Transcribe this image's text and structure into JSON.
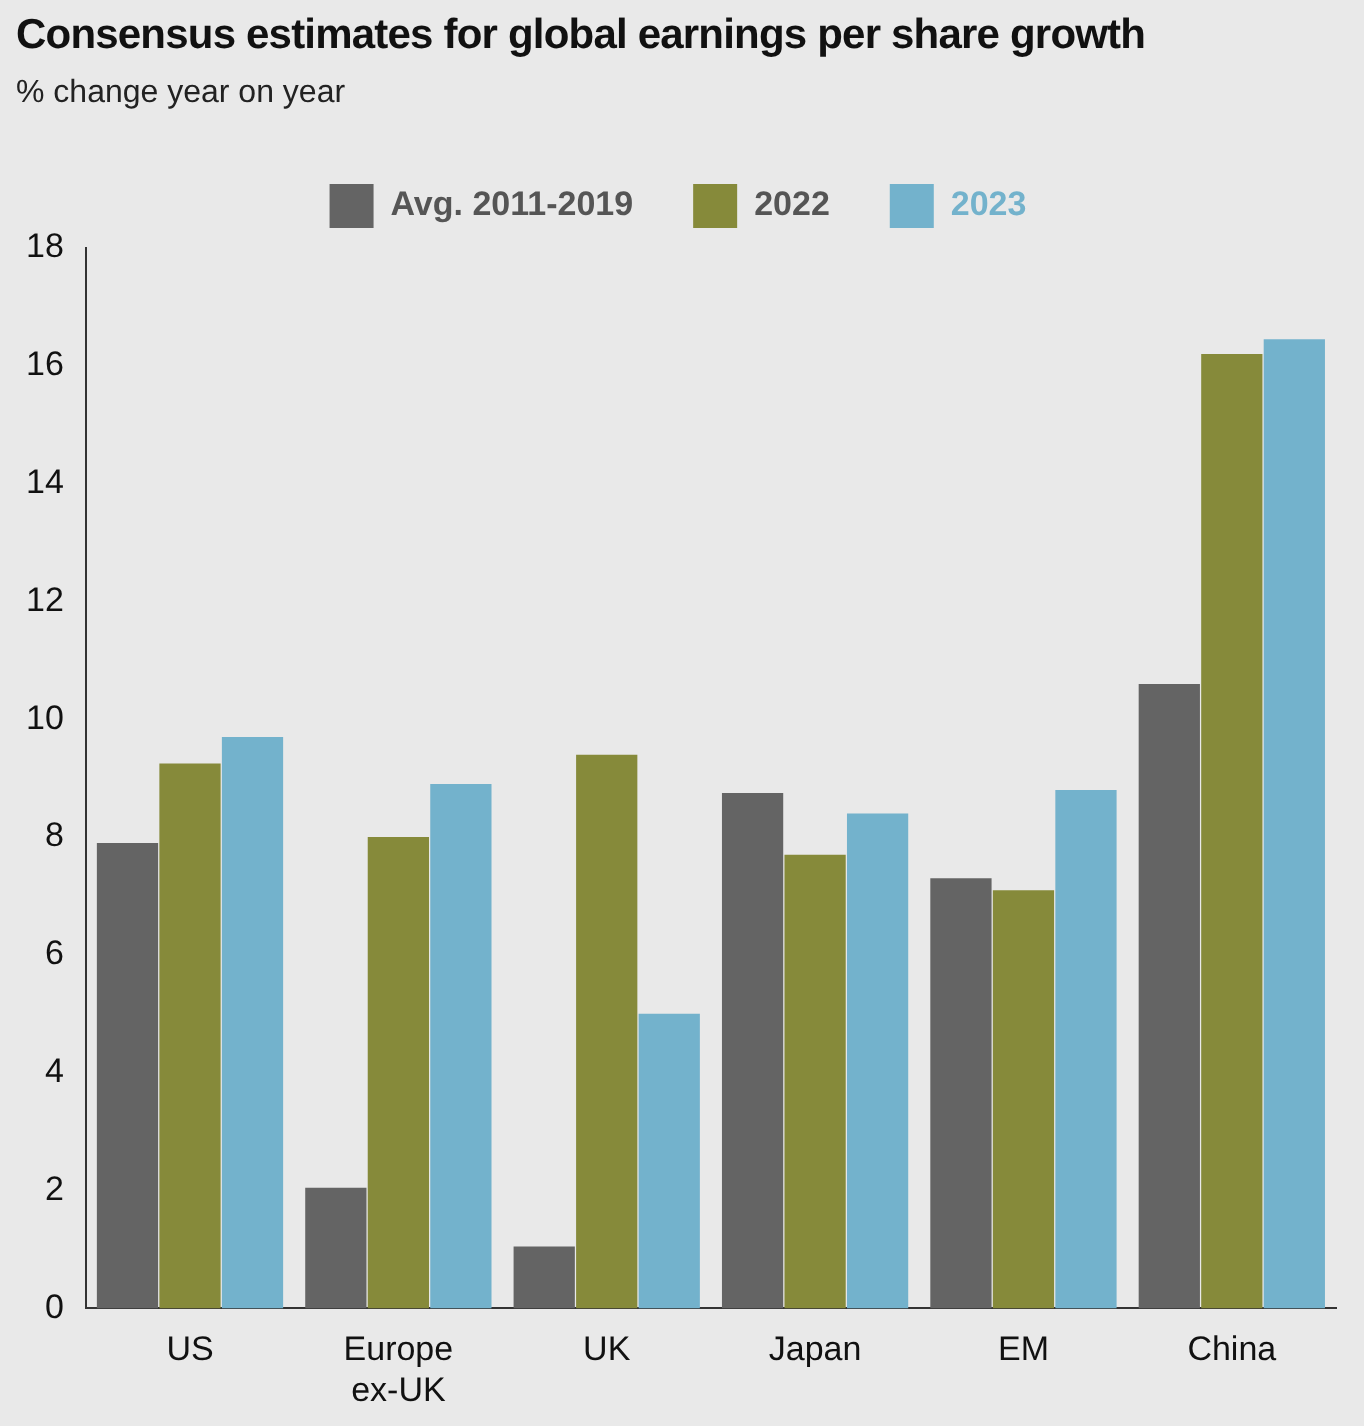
{
  "chart_data": {
    "type": "bar",
    "title": "Consensus estimates for global earnings per share growth",
    "subtitle": "% change year on year",
    "categories": [
      "US",
      "Europe ex-UK",
      "UK",
      "Japan",
      "EM",
      "China"
    ],
    "series": [
      {
        "name": "Avg. 2011-2019",
        "color": "#646464",
        "values": [
          7.9,
          2.05,
          1.05,
          8.75,
          7.3,
          10.6
        ]
      },
      {
        "name": "2022",
        "color": "#868a3a",
        "values": [
          9.25,
          8.0,
          9.4,
          7.7,
          7.1,
          16.2
        ]
      },
      {
        "name": "2023",
        "color": "#73b2cc",
        "values": [
          9.7,
          8.9,
          5.0,
          8.4,
          8.8,
          16.45
        ]
      }
    ],
    "ylim": [
      0,
      18
    ],
    "yticks": [
      0,
      2,
      4,
      6,
      8,
      10,
      12,
      14,
      16,
      18
    ],
    "grid": false,
    "legend": "top"
  }
}
